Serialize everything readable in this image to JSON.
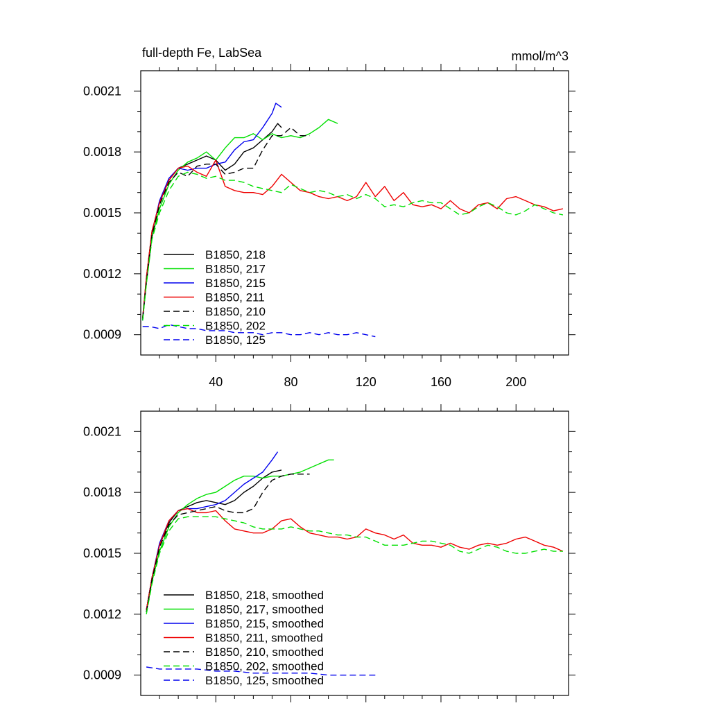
{
  "figure": {
    "title_left": "full-depth Fe, LabSea",
    "title_right": "mmol/m^3"
  },
  "chart_data": [
    {
      "type": "line",
      "title": "full-depth Fe, LabSea",
      "units": "mmol/m^3",
      "xlabel": "",
      "ylabel": "",
      "xlim": [
        0,
        228
      ],
      "ylim": [
        0.0008,
        0.0022
      ],
      "xticks": [
        40,
        80,
        120,
        160,
        200
      ],
      "xtick_labels": [
        "40",
        "80",
        "120",
        "160",
        "200"
      ],
      "yticks": [
        0.0009,
        0.0012,
        0.0015,
        0.0018,
        0.0021
      ],
      "ytick_labels": [
        "0.0009",
        "0.0012",
        "0.0015",
        "0.0018",
        "0.0021"
      ],
      "legend_position": "lower-left",
      "series": [
        {
          "name": "B1850, 218",
          "color": "#000000",
          "dash": "solid",
          "x": [
            1,
            3,
            6,
            10,
            15,
            20,
            25,
            30,
            35,
            40,
            45,
            50,
            55,
            60,
            65,
            70,
            73,
            75
          ],
          "y": [
            0.00098,
            0.00118,
            0.00141,
            0.00155,
            0.00166,
            0.00172,
            0.00174,
            0.00176,
            0.00178,
            0.00176,
            0.00171,
            0.00174,
            0.0018,
            0.00182,
            0.00186,
            0.0019,
            0.00194,
            0.00192
          ]
        },
        {
          "name": "B1850, 217",
          "color": "#00e000",
          "dash": "solid",
          "x": [
            1,
            3,
            6,
            10,
            15,
            20,
            25,
            30,
            35,
            40,
            45,
            50,
            55,
            60,
            65,
            70,
            75,
            80,
            85,
            90,
            95,
            100,
            105
          ],
          "y": [
            0.00097,
            0.00115,
            0.00138,
            0.00152,
            0.00164,
            0.00171,
            0.00175,
            0.00177,
            0.0018,
            0.00176,
            0.00182,
            0.00187,
            0.00187,
            0.00189,
            0.00186,
            0.00189,
            0.00187,
            0.00188,
            0.00187,
            0.00189,
            0.00192,
            0.00196,
            0.00194
          ]
        },
        {
          "name": "B1850, 215",
          "color": "#0000ee",
          "dash": "solid",
          "x": [
            1,
            3,
            6,
            10,
            15,
            20,
            25,
            30,
            35,
            40,
            45,
            50,
            55,
            60,
            65,
            70,
            72,
            75
          ],
          "y": [
            0.00097,
            0.00117,
            0.0014,
            0.00156,
            0.00167,
            0.00172,
            0.00171,
            0.00172,
            0.00172,
            0.00174,
            0.00175,
            0.00181,
            0.00185,
            0.00186,
            0.00192,
            0.00199,
            0.00204,
            0.00202
          ]
        },
        {
          "name": "B1850, 211",
          "color": "#ee0000",
          "dash": "solid",
          "x": [
            1,
            3,
            6,
            10,
            15,
            20,
            25,
            30,
            35,
            40,
            45,
            50,
            55,
            60,
            65,
            70,
            75,
            80,
            85,
            90,
            95,
            100,
            105,
            110,
            115,
            120,
            125,
            130,
            135,
            140,
            145,
            150,
            155,
            160,
            165,
            170,
            175,
            180,
            185,
            190,
            195,
            200,
            205,
            210,
            215,
            220,
            225
          ],
          "y": [
            0.00098,
            0.00118,
            0.00141,
            0.00155,
            0.00166,
            0.00172,
            0.00173,
            0.0017,
            0.00168,
            0.00176,
            0.00163,
            0.00161,
            0.0016,
            0.0016,
            0.00159,
            0.00163,
            0.00169,
            0.00165,
            0.00161,
            0.0016,
            0.00158,
            0.00157,
            0.00158,
            0.00156,
            0.00158,
            0.00165,
            0.00158,
            0.00163,
            0.00156,
            0.0016,
            0.00154,
            0.00153,
            0.00154,
            0.00152,
            0.00156,
            0.00152,
            0.0015,
            0.00154,
            0.00155,
            0.00152,
            0.00157,
            0.00158,
            0.00156,
            0.00154,
            0.00153,
            0.00151,
            0.00152
          ]
        },
        {
          "name": "B1850, 210",
          "color": "#000000",
          "dash": "dash",
          "x": [
            1,
            3,
            6,
            10,
            15,
            20,
            25,
            30,
            35,
            40,
            45,
            50,
            55,
            60,
            65,
            70,
            75,
            80,
            85,
            90
          ],
          "y": [
            0.00098,
            0.00116,
            0.00139,
            0.00154,
            0.00165,
            0.0017,
            0.00168,
            0.00173,
            0.00174,
            0.00174,
            0.00169,
            0.0017,
            0.00172,
            0.00172,
            0.00181,
            0.00188,
            0.00188,
            0.00192,
            0.00188,
            0.00188
          ]
        },
        {
          "name": "B1850, 202",
          "color": "#00e000",
          "dash": "dash",
          "x": [
            1,
            3,
            6,
            10,
            15,
            20,
            25,
            30,
            35,
            40,
            45,
            50,
            55,
            60,
            65,
            70,
            75,
            80,
            85,
            90,
            95,
            100,
            105,
            110,
            115,
            120,
            125,
            130,
            135,
            140,
            145,
            150,
            155,
            160,
            165,
            170,
            175,
            180,
            185,
            190,
            195,
            200,
            205,
            210,
            215,
            220,
            225
          ],
          "y": [
            0.00097,
            0.00115,
            0.00137,
            0.0015,
            0.00161,
            0.00168,
            0.0017,
            0.00169,
            0.00167,
            0.00168,
            0.00166,
            0.00166,
            0.00165,
            0.00163,
            0.00162,
            0.00161,
            0.0016,
            0.00164,
            0.00162,
            0.0016,
            0.00161,
            0.0016,
            0.00158,
            0.00159,
            0.00157,
            0.00159,
            0.00157,
            0.00153,
            0.00154,
            0.00153,
            0.00155,
            0.00156,
            0.00155,
            0.00155,
            0.00152,
            0.00149,
            0.0015,
            0.00153,
            0.00155,
            0.00153,
            0.0015,
            0.00149,
            0.00151,
            0.00154,
            0.00152,
            0.0015,
            0.00149
          ]
        },
        {
          "name": "B1850, 125",
          "color": "#0000ee",
          "dash": "dash",
          "x": [
            1,
            5,
            10,
            15,
            20,
            25,
            30,
            35,
            40,
            45,
            50,
            55,
            60,
            65,
            70,
            75,
            80,
            85,
            90,
            95,
            100,
            105,
            110,
            115,
            120,
            125
          ],
          "y": [
            0.00094,
            0.00094,
            0.00093,
            0.00095,
            0.00094,
            0.00093,
            0.00093,
            0.00092,
            0.00092,
            0.00092,
            0.00091,
            0.00091,
            0.00091,
            0.0009,
            0.00091,
            0.00091,
            0.0009,
            0.0009,
            0.00091,
            0.0009,
            0.00091,
            0.0009,
            0.0009,
            0.00091,
            0.0009,
            0.00089
          ]
        }
      ]
    },
    {
      "type": "line",
      "title": "",
      "xlabel": "",
      "ylabel": "",
      "xlim": [
        0,
        228
      ],
      "ylim": [
        0.0008,
        0.0022
      ],
      "xticks": [
        40,
        80,
        120,
        160,
        200
      ],
      "xtick_labels": [],
      "yticks": [
        0.0009,
        0.0012,
        0.0015,
        0.0018,
        0.0021
      ],
      "ytick_labels": [
        "0.0009",
        "0.0012",
        "0.0015",
        "0.0018",
        "0.0021"
      ],
      "legend_position": "lower-left",
      "series": [
        {
          "name": "B1850, 218, smoothed",
          "color": "#000000",
          "dash": "solid",
          "x": [
            3,
            6,
            10,
            15,
            20,
            25,
            30,
            35,
            40,
            45,
            50,
            55,
            60,
            65,
            70,
            75
          ],
          "y": [
            0.00122,
            0.00138,
            0.00154,
            0.00165,
            0.00171,
            0.00173,
            0.00175,
            0.00176,
            0.00175,
            0.00174,
            0.00176,
            0.0018,
            0.00183,
            0.00187,
            0.0019,
            0.00191
          ]
        },
        {
          "name": "B1850, 217, smoothed",
          "color": "#00e000",
          "dash": "solid",
          "x": [
            3,
            6,
            10,
            15,
            20,
            25,
            30,
            35,
            40,
            45,
            50,
            55,
            60,
            65,
            70,
            75,
            80,
            85,
            90,
            95,
            100,
            103
          ],
          "y": [
            0.00121,
            0.00136,
            0.00151,
            0.00163,
            0.0017,
            0.00174,
            0.00177,
            0.00179,
            0.0018,
            0.00183,
            0.00186,
            0.00188,
            0.00188,
            0.00187,
            0.00188,
            0.00188,
            0.00189,
            0.0019,
            0.00192,
            0.00194,
            0.00196,
            0.00196
          ]
        },
        {
          "name": "B1850, 215, smoothed",
          "color": "#0000ee",
          "dash": "solid",
          "x": [
            3,
            6,
            10,
            15,
            20,
            25,
            30,
            35,
            40,
            45,
            50,
            55,
            60,
            65,
            70,
            73
          ],
          "y": [
            0.00122,
            0.00138,
            0.00155,
            0.00166,
            0.00171,
            0.00172,
            0.00172,
            0.00173,
            0.00174,
            0.00176,
            0.0018,
            0.00184,
            0.00187,
            0.0019,
            0.00196,
            0.002
          ]
        },
        {
          "name": "B1850, 211, smoothed",
          "color": "#ee0000",
          "dash": "solid",
          "x": [
            3,
            6,
            10,
            15,
            20,
            25,
            30,
            35,
            40,
            45,
            50,
            55,
            60,
            65,
            70,
            75,
            80,
            85,
            90,
            95,
            100,
            105,
            110,
            115,
            120,
            125,
            130,
            135,
            140,
            145,
            150,
            155,
            160,
            165,
            170,
            175,
            180,
            185,
            190,
            195,
            200,
            205,
            210,
            215,
            220,
            225
          ],
          "y": [
            0.00122,
            0.00138,
            0.00154,
            0.00166,
            0.00171,
            0.00172,
            0.0017,
            0.0017,
            0.00171,
            0.00166,
            0.00162,
            0.00161,
            0.0016,
            0.0016,
            0.00162,
            0.00166,
            0.00167,
            0.00163,
            0.0016,
            0.00159,
            0.00158,
            0.00158,
            0.00157,
            0.00158,
            0.00162,
            0.0016,
            0.00159,
            0.00157,
            0.00159,
            0.00155,
            0.00154,
            0.00154,
            0.00153,
            0.00155,
            0.00153,
            0.00152,
            0.00154,
            0.00155,
            0.00154,
            0.00155,
            0.00157,
            0.00158,
            0.00156,
            0.00154,
            0.00153,
            0.00151
          ]
        },
        {
          "name": "B1850, 210, smoothed",
          "color": "#000000",
          "dash": "dash",
          "x": [
            3,
            6,
            10,
            15,
            20,
            25,
            30,
            35,
            40,
            45,
            50,
            55,
            60,
            65,
            70,
            75,
            80,
            85,
            90
          ],
          "y": [
            0.00121,
            0.00137,
            0.00153,
            0.00164,
            0.00169,
            0.0017,
            0.00171,
            0.00172,
            0.00173,
            0.00171,
            0.0017,
            0.0017,
            0.00172,
            0.0018,
            0.00186,
            0.00188,
            0.00189,
            0.00189,
            0.00189
          ]
        },
        {
          "name": "B1850, 202, smoothed",
          "color": "#00e000",
          "dash": "dash",
          "x": [
            3,
            6,
            10,
            15,
            20,
            25,
            30,
            35,
            40,
            45,
            50,
            55,
            60,
            65,
            70,
            75,
            80,
            85,
            90,
            95,
            100,
            105,
            110,
            115,
            120,
            125,
            130,
            135,
            140,
            145,
            150,
            155,
            160,
            165,
            170,
            175,
            180,
            185,
            190,
            195,
            200,
            205,
            210,
            215,
            220,
            225
          ],
          "y": [
            0.0012,
            0.00135,
            0.0015,
            0.00161,
            0.00167,
            0.00168,
            0.00168,
            0.00168,
            0.00168,
            0.00167,
            0.00166,
            0.00165,
            0.00163,
            0.00162,
            0.00162,
            0.00162,
            0.00163,
            0.00162,
            0.00161,
            0.00161,
            0.0016,
            0.00159,
            0.00159,
            0.00158,
            0.00158,
            0.00156,
            0.00154,
            0.00154,
            0.00154,
            0.00155,
            0.00156,
            0.00156,
            0.00155,
            0.00154,
            0.00151,
            0.0015,
            0.00152,
            0.00154,
            0.00153,
            0.00151,
            0.0015,
            0.0015,
            0.00151,
            0.00152,
            0.00151,
            0.00151
          ]
        },
        {
          "name": "B1850, 125, smoothed",
          "color": "#0000ee",
          "dash": "dash",
          "x": [
            3,
            10,
            20,
            30,
            40,
            50,
            60,
            70,
            80,
            90,
            100,
            110,
            120,
            125
          ],
          "y": [
            0.00094,
            0.00093,
            0.00093,
            0.00093,
            0.00092,
            0.00092,
            0.00091,
            0.00091,
            0.00091,
            0.00091,
            0.0009,
            0.0009,
            0.0009,
            0.0009
          ]
        }
      ]
    }
  ]
}
